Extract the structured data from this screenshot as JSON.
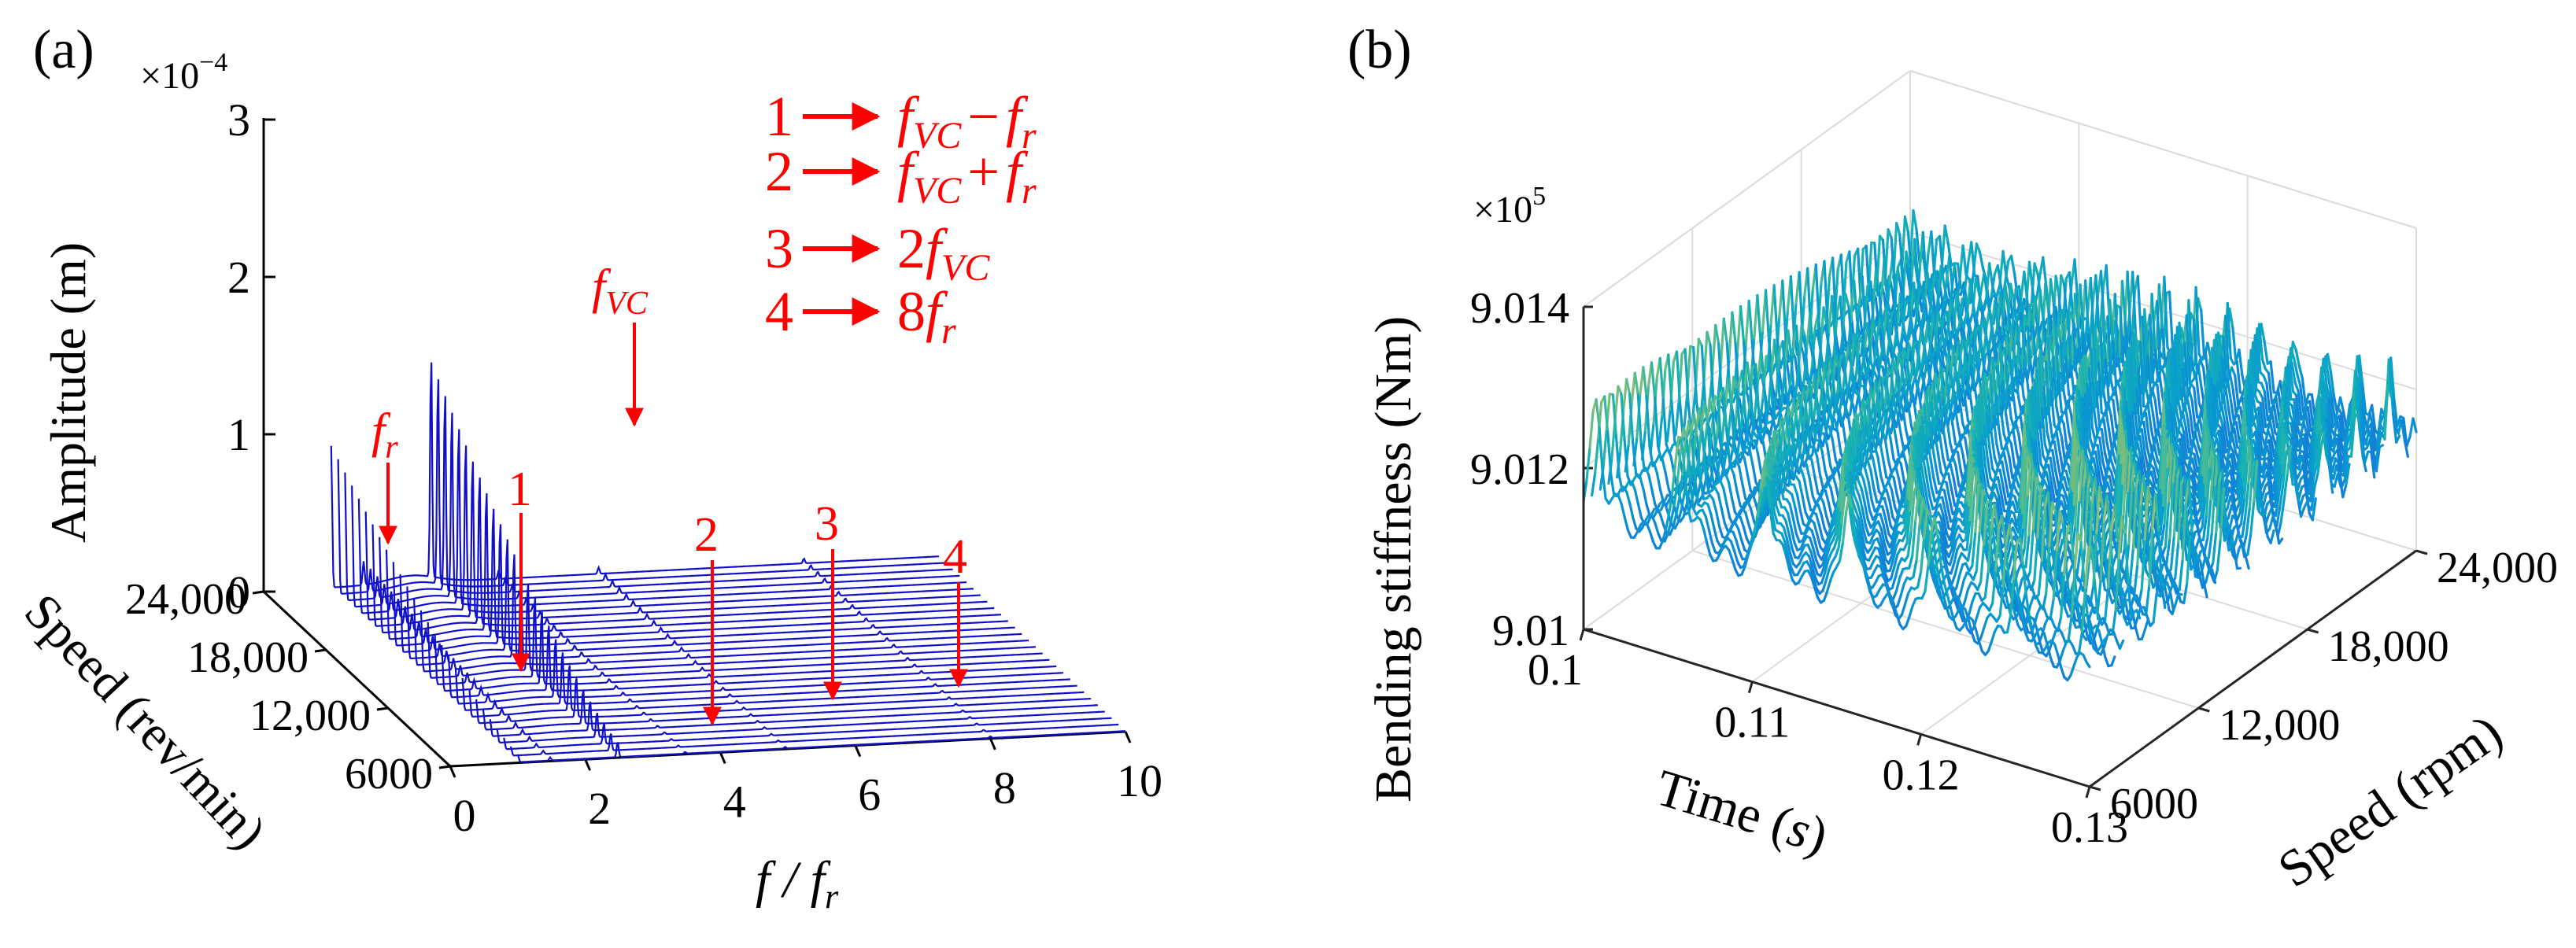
{
  "chart_data": [
    {
      "panel_label": "(a)",
      "type": "waterfall-spectrum",
      "x_label": "f / f",
      "x_label_sub": "r",
      "x_ticks": [
        "0",
        "2",
        "4",
        "6",
        "8",
        "10"
      ],
      "xlim": [
        0,
        10
      ],
      "y_label": "Speed (rev/min)",
      "y_ticks": [
        "6000",
        "12,000",
        "18,000",
        "24,000"
      ],
      "ylim": [
        6000,
        24000
      ],
      "z_label": "Amplitude (m)",
      "z_exponent_prefix": "×10",
      "z_exponent_power": "−4",
      "z_ticks": [
        "0",
        "1",
        "2",
        "3"
      ],
      "zlim": [
        0,
        3
      ],
      "series_color": "#1010c8",
      "n_speed_traces": 28,
      "peaks": [
        {
          "name": "f_r",
          "x": 1.0,
          "amp_low_speed": 0.05,
          "amp_high_speed": 0.9
        },
        {
          "name": "f_VC",
          "x": 2.48,
          "amp_low_speed": 0.1,
          "amp_high_speed": 1.45
        },
        {
          "name": "f_VC - f_r",
          "x": 1.48,
          "amp_low_speed": 0.02,
          "amp_high_speed": 0.15
        },
        {
          "name": "f_VC + f_r",
          "x": 3.48,
          "amp_low_speed": 0.01,
          "amp_high_speed": 0.05
        },
        {
          "name": "2f_VC",
          "x": 4.96,
          "amp_low_speed": 0.01,
          "amp_high_speed": 0.04
        },
        {
          "name": "8f_r",
          "x": 8.0,
          "amp_low_speed": 0.01,
          "amp_high_speed": 0.03
        }
      ],
      "annotations": {
        "fr": {
          "main": "f",
          "sub": "r"
        },
        "fvc": {
          "main": "f",
          "sub": "VC"
        },
        "markers": [
          "1",
          "2",
          "3",
          "4"
        ]
      },
      "legend": [
        {
          "num": "1",
          "f1": "f",
          "s1": "VC",
          "op": "−",
          "f2": "f",
          "s2": "r"
        },
        {
          "num": "2",
          "f1": "f",
          "s1": "VC",
          "op": "+",
          "f2": "f",
          "s2": "r"
        },
        {
          "num": "3",
          "pre": "2",
          "f1": "f",
          "s1": "VC"
        },
        {
          "num": "4",
          "pre": "8",
          "f1": "f",
          "s1": "r"
        }
      ],
      "annotation_color": "#ff0000"
    },
    {
      "panel_label": "(b)",
      "type": "surface-3d-ribbons",
      "x_label": "Time (",
      "x_label_var": "s",
      "x_label_end": ")",
      "x_ticks": [
        "0.1",
        "0.11",
        "0.12",
        "0.13"
      ],
      "xlim": [
        0.1,
        0.13
      ],
      "y_label": "Speed (rpm)",
      "y_ticks": [
        "6000",
        "12,000",
        "18,000",
        "24,000"
      ],
      "ylim": [
        6000,
        24000
      ],
      "z_label": "Bending stiffness (Nm)",
      "z_exponent_prefix": "×10",
      "z_exponent_power": "5",
      "z_ticks": [
        "9.01",
        "9.012",
        "9.014"
      ],
      "zlim": [
        9.01,
        9.014
      ],
      "colormap": "parula",
      "n_speed_ribbons": 40
    }
  ]
}
